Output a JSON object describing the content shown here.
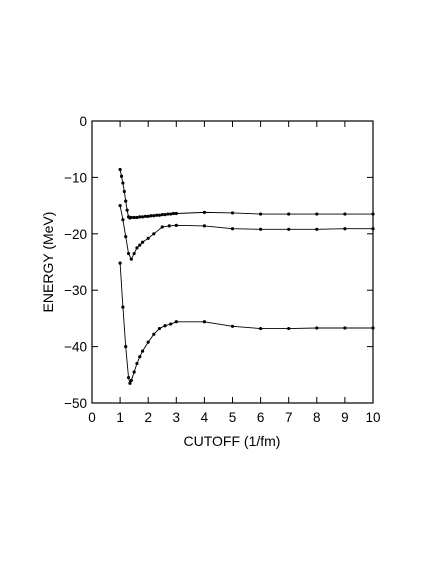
{
  "chart_data": {
    "type": "line",
    "title": "",
    "xlabel": "CUTOFF  (1/fm)",
    "ylabel": "ENERGY  (MeV)",
    "xlim": [
      0,
      10
    ],
    "ylim": [
      -50,
      0
    ],
    "xticks": [
      0,
      1,
      2,
      3,
      4,
      5,
      6,
      7,
      8,
      9,
      10
    ],
    "yticks": [
      0,
      -10,
      -20,
      -30,
      -40,
      -50
    ],
    "grid": false,
    "legend": "none",
    "line_color": "#000000",
    "series": [
      {
        "x": [
          1.0,
          1.05,
          1.1,
          1.15,
          1.2,
          1.25,
          1.3,
          1.35,
          1.4,
          1.5,
          1.6,
          1.7,
          1.8,
          1.9,
          2.0,
          2.1,
          2.2,
          2.3,
          2.4,
          2.5,
          2.6,
          2.7,
          2.8,
          2.9,
          3.0,
          4.0,
          5.0,
          6.0,
          7.0,
          8.0,
          9.0,
          10.0
        ],
        "y": [
          -8.6,
          -9.8,
          -11.0,
          -12.5,
          -14.2,
          -15.8,
          -17.0,
          -17.2,
          -17.1,
          -17.1,
          -17.1,
          -17.0,
          -17.0,
          -16.9,
          -16.9,
          -16.8,
          -16.8,
          -16.7,
          -16.7,
          -16.6,
          -16.6,
          -16.5,
          -16.5,
          -16.4,
          -16.4,
          -16.2,
          -16.3,
          -16.5,
          -16.5,
          -16.5,
          -16.5,
          -16.5
        ]
      },
      {
        "x": [
          1.0,
          1.1,
          1.2,
          1.3,
          1.4,
          1.5,
          1.6,
          1.7,
          1.8,
          2.0,
          2.2,
          2.5,
          2.75,
          3.0,
          4.0,
          5.0,
          6.0,
          7.0,
          8.0,
          9.0,
          10.0
        ],
        "y": [
          -15.0,
          -17.5,
          -20.5,
          -23.5,
          -24.5,
          -23.5,
          -22.5,
          -22.0,
          -21.5,
          -20.8,
          -20.0,
          -18.8,
          -18.6,
          -18.5,
          -18.6,
          -19.1,
          -19.2,
          -19.2,
          -19.2,
          -19.1,
          -19.1
        ]
      },
      {
        "x": [
          1.0,
          1.1,
          1.2,
          1.3,
          1.35,
          1.4,
          1.5,
          1.6,
          1.7,
          1.8,
          2.0,
          2.2,
          2.4,
          2.6,
          2.8,
          3.0,
          4.0,
          5.0,
          6.0,
          7.0,
          8.0,
          9.0,
          10.0
        ],
        "y": [
          -25.2,
          -33.0,
          -40.0,
          -45.5,
          -46.5,
          -46.0,
          -44.5,
          -43.0,
          -41.8,
          -40.8,
          -39.2,
          -37.8,
          -36.8,
          -36.3,
          -36.0,
          -35.6,
          -35.6,
          -36.4,
          -36.8,
          -36.8,
          -36.7,
          -36.7,
          -36.7
        ]
      }
    ]
  }
}
